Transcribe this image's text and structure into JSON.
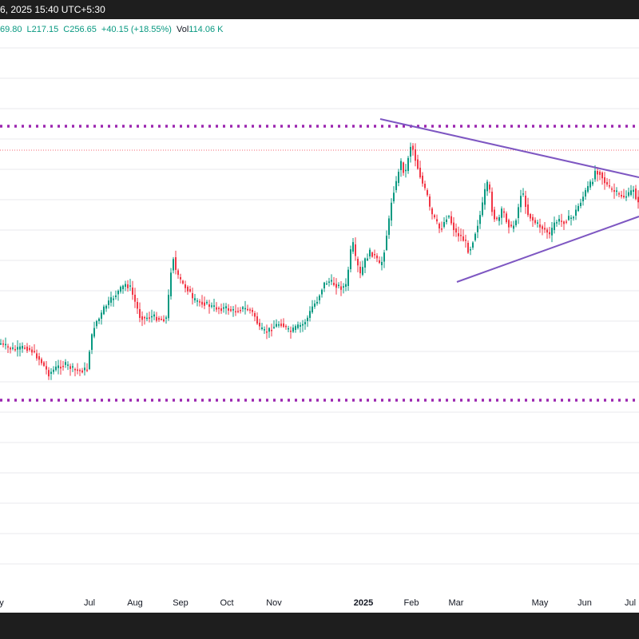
{
  "header": {
    "datetime_fragment": "6, 2025 15:40 UTC+5:30",
    "ohlc": {
      "high_fragment": "69.80",
      "low": "L217.15",
      "close": "C256.65",
      "change": "+40.15 (+18.55%)",
      "volume_label": "Vol",
      "volume_value": "114.06 K"
    }
  },
  "colors": {
    "up": "#089981",
    "down": "#f23645",
    "trendline": "#7e57c2",
    "level": "#9c27b0",
    "price_line": "#f23645",
    "grid": "#e8e9ed",
    "bar": "#1e1e1e"
  },
  "chart_data": {
    "type": "candlestick",
    "x_axis_labels": [
      "y",
      "Jul",
      "Aug",
      "Sep",
      "Oct",
      "Nov",
      "2025",
      "Feb",
      "Mar",
      "May",
      "Jun",
      "Jul"
    ],
    "x_axis_bold": [
      "2025"
    ],
    "annotations": [
      {
        "kind": "horizontal dotted level",
        "color": "#9c27b0",
        "position": "upper resistance"
      },
      {
        "kind": "horizontal dotted level",
        "color": "#9c27b0",
        "position": "lower support"
      },
      {
        "kind": "horizontal thin dotted price line",
        "color": "#f23645"
      },
      {
        "kind": "descending trendline",
        "color": "#7e57c2"
      },
      {
        "kind": "ascending trendline",
        "color": "#7e57c2"
      }
    ],
    "series": [
      {
        "close_path": [
          [
            0,
            430
          ],
          [
            10,
            436
          ],
          [
            20,
            438
          ],
          [
            30,
            434
          ],
          [
            40,
            440
          ],
          [
            50,
            452
          ],
          [
            60,
            468
          ],
          [
            70,
            460
          ],
          [
            80,
            456
          ],
          [
            90,
            462
          ],
          [
            100,
            464
          ],
          [
            108,
            462
          ],
          [
            112,
            430
          ],
          [
            118,
            404
          ],
          [
            124,
            398
          ],
          [
            130,
            384
          ],
          [
            136,
            378
          ],
          [
            146,
            366
          ],
          [
            156,
            356
          ],
          [
            162,
            360
          ],
          [
            168,
            378
          ],
          [
            174,
            396
          ],
          [
            180,
            398
          ],
          [
            190,
            396
          ],
          [
            200,
            400
          ],
          [
            208,
            398
          ],
          [
            212,
            344
          ],
          [
            216,
            322
          ],
          [
            220,
            344
          ],
          [
            228,
            356
          ],
          [
            236,
            364
          ],
          [
            240,
            376
          ],
          [
            250,
            378
          ],
          [
            256,
            380
          ],
          [
            264,
            384
          ],
          [
            272,
            386
          ],
          [
            282,
            386
          ],
          [
            292,
            390
          ],
          [
            302,
            386
          ],
          [
            312,
            388
          ],
          [
            318,
            396
          ],
          [
            324,
            412
          ],
          [
            332,
            416
          ],
          [
            340,
            410
          ],
          [
            350,
            404
          ],
          [
            356,
            410
          ],
          [
            362,
            416
          ],
          [
            370,
            410
          ],
          [
            378,
            406
          ],
          [
            384,
            398
          ],
          [
            390,
            384
          ],
          [
            396,
            376
          ],
          [
            404,
            356
          ],
          [
            410,
            352
          ],
          [
            418,
            356
          ],
          [
            426,
            360
          ],
          [
            432,
            358
          ],
          [
            436,
            330
          ],
          [
            440,
            300
          ],
          [
            444,
            324
          ],
          [
            450,
            344
          ],
          [
            456,
            326
          ],
          [
            462,
            316
          ],
          [
            468,
            320
          ],
          [
            474,
            332
          ],
          [
            478,
            326
          ],
          [
            482,
            300
          ],
          [
            486,
            276
          ],
          [
            490,
            244
          ],
          [
            496,
            226
          ],
          [
            500,
            200
          ],
          [
            506,
            220
          ],
          [
            510,
            196
          ],
          [
            514,
            178
          ],
          [
            518,
            196
          ],
          [
            522,
            210
          ],
          [
            528,
            230
          ],
          [
            534,
            246
          ],
          [
            538,
            266
          ],
          [
            544,
            276
          ],
          [
            550,
            288
          ],
          [
            556,
            276
          ],
          [
            560,
            268
          ],
          [
            566,
            284
          ],
          [
            570,
            292
          ],
          [
            576,
            296
          ],
          [
            582,
            304
          ],
          [
            586,
            316
          ],
          [
            590,
            304
          ],
          [
            596,
            284
          ],
          [
            602,
            262
          ],
          [
            608,
            228
          ],
          [
            612,
            240
          ],
          [
            616,
            270
          ],
          [
            622,
            278
          ],
          [
            628,
            262
          ],
          [
            634,
            278
          ],
          [
            640,
            288
          ],
          [
            646,
            270
          ],
          [
            652,
            238
          ],
          [
            656,
            252
          ],
          [
            660,
            268
          ],
          [
            668,
            278
          ],
          [
            676,
            284
          ],
          [
            682,
            288
          ],
          [
            688,
            296
          ],
          [
            692,
            280
          ],
          [
            698,
            276
          ],
          [
            704,
            278
          ],
          [
            710,
            274
          ],
          [
            716,
            272
          ],
          [
            722,
            260
          ],
          [
            728,
            248
          ],
          [
            734,
            236
          ],
          [
            740,
            228
          ],
          [
            744,
            214
          ],
          [
            750,
            216
          ],
          [
            756,
            228
          ],
          [
            762,
            236
          ],
          [
            768,
            240
          ],
          [
            774,
            244
          ],
          [
            780,
            246
          ],
          [
            786,
            244
          ],
          [
            792,
            236
          ],
          [
            796,
            250
          ],
          [
            800,
            262
          ]
        ]
      }
    ]
  }
}
